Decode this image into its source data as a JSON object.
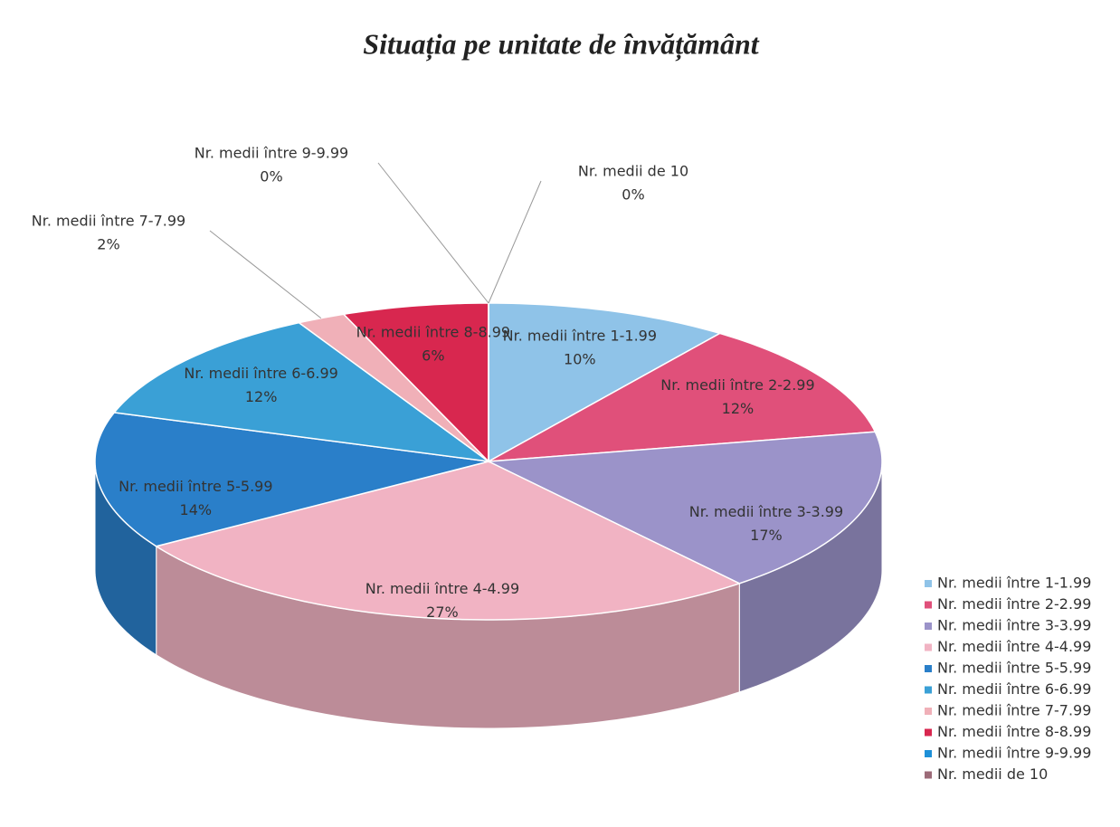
{
  "chart_data": {
    "type": "pie",
    "title": "Situația pe unitate de învățământ",
    "categories": [
      "Nr. medii între 1-1.99",
      "Nr. medii între 2-2.99",
      "Nr. medii între 3-3.99",
      "Nr. medii între 4-4.99",
      "Nr. medii între 5-5.99",
      "Nr. medii între 6-6.99",
      "Nr. medii între 7-7.99",
      "Nr. medii între 8-8.99",
      "Nr. medii între 9-9.99",
      "Nr. medii de 10"
    ],
    "values": [
      10,
      12,
      17,
      27,
      14,
      12,
      2,
      6,
      0,
      0
    ],
    "value_labels": [
      "10%",
      "12%",
      "17%",
      "27%",
      "14%",
      "12%",
      "2%",
      "6%",
      "0%",
      "0%"
    ],
    "colors": [
      "#8fc3e8",
      "#e0507a",
      "#9b93c9",
      "#f1b3c3",
      "#2a7fc9",
      "#3aa0d6",
      "#f0b0b8",
      "#d8274f",
      "#1e90d8",
      "#9c6b78"
    ],
    "legend": "right"
  }
}
